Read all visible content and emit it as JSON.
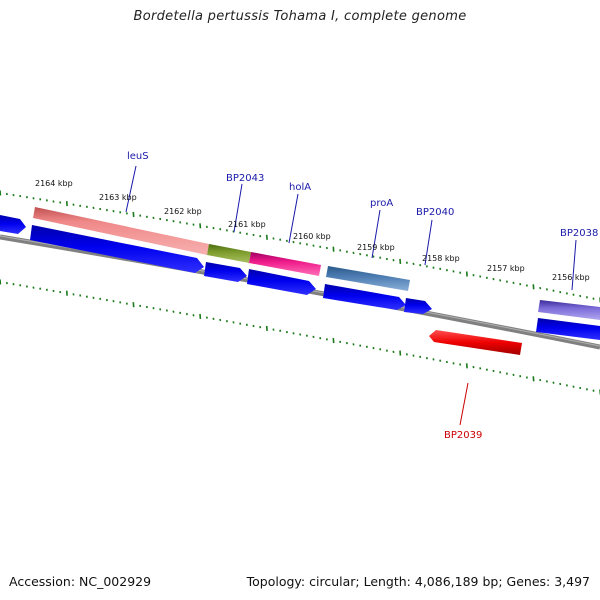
{
  "title": "Bordetella pertussis Tohama I, complete genome",
  "footer": {
    "accession": "Accession: NC_002929",
    "summary": "Topology: circular; Length: 4,086,189 bp; Genes: 3,497"
  },
  "colors": {
    "backbone": "#808080",
    "tick": "#1a7a1a",
    "gene_label": "#1a1aaa",
    "gene_label_highlight": "#cc0000",
    "cds": "#0000ee"
  },
  "kbp_ticks": [
    "2164 kbp",
    "2163 kbp",
    "2162 kbp",
    "2161 kbp",
    "2160 kbp",
    "2159 kbp",
    "2158 kbp",
    "2157 kbp",
    "2156 kbp"
  ],
  "gene_labels": [
    {
      "text": "leuS",
      "color": "#1a1aaa"
    },
    {
      "text": "BP2043",
      "color": "#1a1aaa"
    },
    {
      "text": "holA",
      "color": "#1a1aaa"
    },
    {
      "text": "proA",
      "color": "#1a1aaa"
    },
    {
      "text": "BP2040",
      "color": "#1a1aaa"
    },
    {
      "text": "BP2038",
      "color": "#1a1aaa"
    },
    {
      "text": "BP2039",
      "color": "#cc0000"
    }
  ],
  "feature_colors": {
    "leuS": "#f08888",
    "BP2043": "#7a9a2a",
    "holA": "#ee1a8a",
    "proA": "#4a7ab0",
    "BP2038": "#7a6ad8",
    "BP2039": "#ee0000"
  }
}
